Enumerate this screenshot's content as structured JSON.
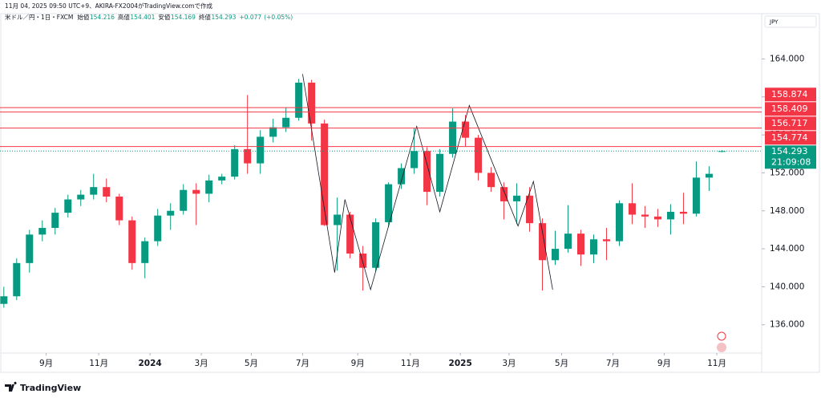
{
  "header": {
    "caption": "11月 04, 2025 09:50 UTC+9、AKIRA-FX2004がTradingView.comで作成",
    "symbol": "米ドル／円・1日・FXCM",
    "ohlc_labels": [
      "始値",
      "高値",
      "安値",
      "終値"
    ],
    "change": "+0.077",
    "change_pct": "(+0.05%)"
  },
  "footer": {
    "brand": "TradingView"
  },
  "chart_data": {
    "type": "candlestick",
    "currency": "JPY",
    "up_color": "#089981",
    "down_color": "#f23645",
    "open": [
      138.2,
      139.0,
      142.5,
      145.5,
      146.2,
      147.8,
      149.2,
      149.7,
      150.5,
      149.5,
      147.0,
      142.5,
      144.8,
      147.5,
      148.0,
      150.2,
      149.8,
      151.2,
      151.6,
      154.5,
      153.0,
      155.8,
      156.8,
      157.8,
      161.5,
      157.2,
      146.5,
      147.6,
      143.5,
      142.0,
      146.8,
      150.8,
      152.5,
      154.3,
      150.0,
      154.0,
      157.4,
      155.7,
      152.0,
      150.5,
      149.0,
      149.6,
      146.7,
      142.8,
      144.0,
      145.6,
      143.4,
      145.0,
      144.8,
      148.8,
      147.6,
      147.4,
      147.1,
      147.9,
      147.7,
      151.5,
      154.216
    ],
    "high": [
      140.0,
      143.0,
      146.0,
      147.0,
      148.3,
      149.7,
      150.2,
      151.9,
      151.4,
      149.8,
      147.4,
      145.2,
      148.2,
      148.8,
      150.8,
      150.9,
      151.8,
      151.9,
      154.9,
      160.2,
      156.5,
      157.7,
      158.9,
      161.9,
      161.8,
      157.6,
      149.4,
      147.9,
      144.3,
      147.2,
      151.0,
      153.0,
      156.7,
      154.7,
      154.5,
      158.8,
      158.1,
      156.0,
      152.6,
      151.0,
      150.9,
      150.5,
      147.2,
      145.9,
      148.6,
      146.0,
      145.5,
      146.2,
      149.1,
      150.9,
      148.5,
      148.2,
      148.7,
      149.9,
      153.2,
      152.7,
      154.401
    ],
    "low": [
      137.8,
      138.6,
      141.5,
      144.8,
      145.5,
      147.3,
      148.5,
      149.2,
      148.9,
      146.5,
      141.8,
      140.9,
      144.3,
      146.0,
      147.6,
      146.5,
      148.9,
      150.8,
      151.3,
      151.9,
      151.9,
      155.2,
      156.3,
      157.5,
      155.4,
      146.4,
      141.7,
      143.0,
      139.6,
      141.6,
      146.3,
      150.3,
      151.9,
      148.6,
      149.5,
      153.6,
      154.8,
      151.2,
      150.0,
      147.1,
      146.6,
      145.8,
      139.6,
      142.3,
      143.6,
      142.2,
      142.5,
      142.8,
      144.3,
      146.6,
      146.2,
      146.3,
      145.5,
      146.6,
      147.4,
      150.1,
      154.169
    ],
    "close": [
      139.0,
      142.5,
      145.5,
      146.2,
      147.8,
      149.2,
      149.7,
      150.5,
      149.5,
      147.0,
      142.5,
      144.8,
      147.5,
      148.0,
      150.2,
      149.8,
      151.2,
      151.6,
      154.5,
      153.0,
      155.8,
      156.8,
      157.8,
      161.5,
      157.2,
      146.5,
      147.6,
      143.5,
      142.0,
      146.8,
      150.8,
      152.5,
      154.3,
      150.0,
      154.0,
      157.4,
      155.7,
      152.0,
      150.5,
      149.0,
      149.6,
      146.7,
      142.8,
      144.0,
      145.6,
      143.4,
      145.0,
      144.8,
      148.8,
      147.6,
      147.4,
      147.1,
      147.9,
      147.7,
      151.5,
      151.9,
      154.293
    ],
    "countdown": "21:09:08",
    "levels": [
      {
        "value": 158.874,
        "label": "158.874"
      },
      {
        "value": 158.409,
        "label": "158.409"
      },
      {
        "value": 156.717,
        "label": "156.717"
      },
      {
        "value": 154.774,
        "label": "154.774"
      }
    ],
    "level_color": "#f23645",
    "zigzag": {
      "x": [
        23.3,
        25.8,
        26.6,
        28.6,
        32.2,
        34.0,
        36.3,
        40.1,
        41.3,
        42.8
      ],
      "y": [
        162.4,
        141.5,
        149.2,
        139.7,
        156.9,
        147.9,
        159.1,
        146.4,
        151.1,
        139.7
      ]
    },
    "xlim": [
      -0.3,
      59.1
    ],
    "xticks": [
      {
        "value": 3.3,
        "label": "9月"
      },
      {
        "value": 7.4,
        "label": "11月"
      },
      {
        "value": 11.4,
        "label": "2024"
      },
      {
        "value": 15.4,
        "label": "3月"
      },
      {
        "value": 19.3,
        "label": "5月"
      },
      {
        "value": 23.3,
        "label": "7月"
      },
      {
        "value": 27.6,
        "label": "9月"
      },
      {
        "value": 31.7,
        "label": "11月"
      },
      {
        "value": 35.6,
        "label": "2025"
      },
      {
        "value": 39.4,
        "label": "3月"
      },
      {
        "value": 43.5,
        "label": "5月"
      },
      {
        "value": 47.5,
        "label": "7月"
      },
      {
        "value": 51.5,
        "label": "9月"
      },
      {
        "value": 55.6,
        "label": "11月"
      }
    ],
    "ylim": [
      133.02,
      168.77
    ],
    "yticks": [
      {
        "value": 136,
        "label": "136.000"
      },
      {
        "value": 140,
        "label": "140.000"
      },
      {
        "value": 144,
        "label": "144.000"
      },
      {
        "value": 148,
        "label": "148.000"
      },
      {
        "value": 152,
        "label": "152.000"
      },
      {
        "value": 156,
        "label": "156.000"
      },
      {
        "value": 160,
        "label": "160.000"
      },
      {
        "value": 164,
        "label": "164.000"
      }
    ]
  }
}
